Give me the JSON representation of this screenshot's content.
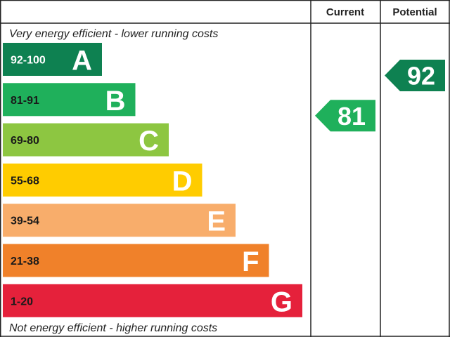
{
  "chart_data": {
    "type": "bar",
    "columns": {
      "current": "Current",
      "potential": "Potential"
    },
    "top_note": "Very energy efficient - lower running costs",
    "bottom_note": "Not energy efficient - higher running costs",
    "bands": [
      {
        "range": "92-100",
        "letter": "A",
        "min": 92,
        "max": 100,
        "color": "#0e8151"
      },
      {
        "range": "81-91",
        "letter": "B",
        "min": 81,
        "max": 91,
        "color": "#1fb05b"
      },
      {
        "range": "69-80",
        "letter": "C",
        "min": 69,
        "max": 80,
        "color": "#8dc641"
      },
      {
        "range": "55-68",
        "letter": "D",
        "min": 55,
        "max": 68,
        "color": "#ffcc00"
      },
      {
        "range": "39-54",
        "letter": "E",
        "min": 39,
        "max": 54,
        "color": "#f8ad6b"
      },
      {
        "range": "21-38",
        "letter": "F",
        "min": 21,
        "max": 38,
        "color": "#f0812a"
      },
      {
        "range": "1-20",
        "letter": "G",
        "min": 1,
        "max": 20,
        "color": "#e5213b"
      }
    ],
    "current": {
      "value": 81,
      "band": "B",
      "color": "#1fb05b"
    },
    "potential": {
      "value": 92,
      "band": "A",
      "color": "#0e8151"
    }
  }
}
